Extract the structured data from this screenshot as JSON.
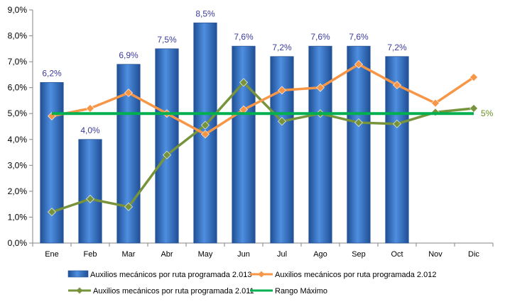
{
  "chart_data": {
    "type": "bar+line",
    "categories": [
      "Ene",
      "Feb",
      "Mar",
      "Abr",
      "May",
      "Jun",
      "Jul",
      "Ago",
      "Sep",
      "Oct",
      "Nov",
      "Dic"
    ],
    "ylim": [
      0,
      9
    ],
    "y_ticks": [
      "0,0%",
      "1,0%",
      "2,0%",
      "3,0%",
      "4,0%",
      "5,0%",
      "6,0%",
      "7,0%",
      "8,0%",
      "9,0%"
    ],
    "grid": false,
    "legend_position": "bottom",
    "bars": {
      "name": "Auxilios mecánicos por ruta programada 2.013",
      "color": "#2f6fc4",
      "values": [
        6.2,
        4.0,
        6.9,
        7.5,
        8.5,
        7.6,
        7.2,
        7.6,
        7.6,
        7.2,
        null,
        null
      ],
      "labels": [
        "6,2%",
        "4,0%",
        "6,9%",
        "7,5%",
        "8,5%",
        "7,6%",
        "7,2%",
        "7,6%",
        "7,6%",
        "7,2%",
        "",
        ""
      ]
    },
    "series": [
      {
        "name": "Auxilios mecánicos por ruta programada 2.012",
        "color": "#f79646",
        "marker": "diamond",
        "values": [
          4.9,
          5.2,
          5.8,
          5.0,
          4.2,
          5.15,
          5.9,
          6.0,
          6.9,
          6.1,
          5.4,
          6.4
        ]
      },
      {
        "name": "Auxilios mecánicos por ruta programada 2.011",
        "color": "#77933c",
        "marker": "diamond",
        "values": [
          1.2,
          1.7,
          1.4,
          3.4,
          4.55,
          6.2,
          4.7,
          5.0,
          4.65,
          4.6,
          5.05,
          5.2
        ]
      },
      {
        "name": "Rango Máximo",
        "color": "#00b050",
        "marker": "none",
        "values": [
          5,
          5,
          5,
          5,
          5,
          5,
          5,
          5,
          5,
          5,
          5,
          5
        ],
        "end_label": "5%",
        "end_label_color": "#6b8e23"
      }
    ]
  }
}
